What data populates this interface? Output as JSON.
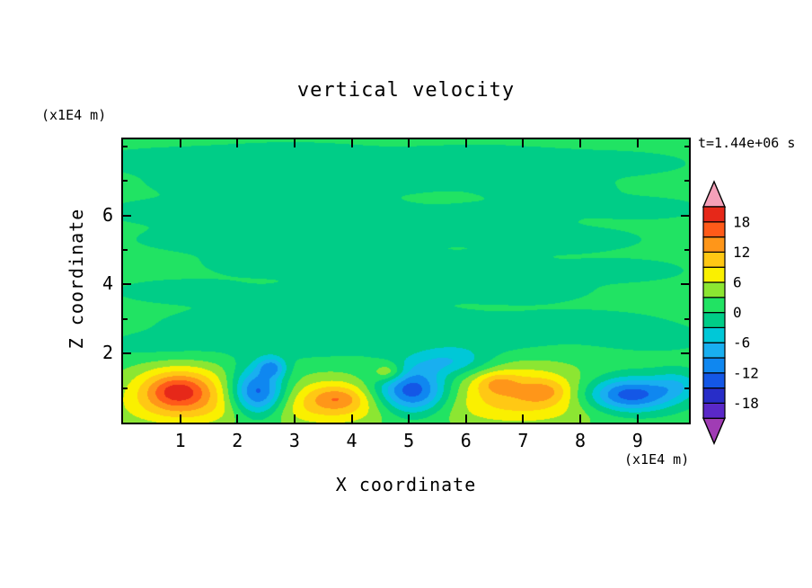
{
  "title": "vertical velocity",
  "timestamp": "t=1.44e+06 s",
  "axes": {
    "x_label": "X coordinate",
    "z_label": "Z coordinate",
    "x_unit": "(x1E4 m)",
    "z_unit": "(x1E4 m)"
  },
  "chart_data": {
    "type": "heatmap",
    "title": "vertical velocity",
    "xlabel": "X coordinate",
    "ylabel": "Z coordinate",
    "x_unit": "x1E4 m",
    "z_unit": "x1E4 m",
    "time_label": "t=1.44e+06 s",
    "x_range": [
      0,
      9.9
    ],
    "z_range": [
      0,
      8.2
    ],
    "x_ticks": [
      1,
      2,
      3,
      4,
      5,
      6,
      7,
      8,
      9
    ],
    "z_ticks": [
      2,
      4,
      6
    ],
    "z_minor_ticks": [
      1,
      3,
      5,
      7,
      8
    ],
    "levels": [
      -21,
      -18,
      -15,
      -12,
      -9,
      -6,
      -3,
      0,
      3,
      6,
      9,
      12,
      15,
      18,
      21
    ],
    "colors": [
      "#A03CB4",
      "#5A28C8",
      "#282DC8",
      "#1457E6",
      "#0F87F0",
      "#19AFF0",
      "#00C8D7",
      "#00CD87",
      "#21E363",
      "#8CE632",
      "#FAF000",
      "#FFC814",
      "#FF9619",
      "#FF5A19",
      "#E62819",
      "#F5A0B9"
    ],
    "colorbar_labels": [
      {
        "level": 18,
        "text": "18"
      },
      {
        "level": 12,
        "text": "12"
      },
      {
        "level": 6,
        "text": "6"
      },
      {
        "level": 0,
        "text": "0"
      },
      {
        "level": -6,
        "text": "-6"
      },
      {
        "level": -12,
        "text": "-12"
      },
      {
        "level": -18,
        "text": "-18"
      }
    ],
    "base": 1.3,
    "features": [
      {
        "x": 1.0,
        "z": 0.95,
        "sx": 0.62,
        "sz": 0.5,
        "a": 13
      },
      {
        "x": 0.95,
        "z": 0.9,
        "sx": 0.3,
        "sz": 0.27,
        "a": 5
      },
      {
        "x": 2.35,
        "z": 0.85,
        "sx": 0.33,
        "sz": 0.5,
        "a": -16.5
      },
      {
        "x": 2.6,
        "z": 1.6,
        "sx": 0.17,
        "sz": 0.2,
        "a": -9
      },
      {
        "x": 3.7,
        "z": 0.75,
        "sx": 0.6,
        "sz": 0.42,
        "a": 8
      },
      {
        "x": 3.75,
        "z": 0.7,
        "sx": 0.28,
        "sz": 0.2,
        "a": 3.5
      },
      {
        "x": 4.65,
        "z": 1.45,
        "sx": 0.2,
        "sz": 0.2,
        "a": 7.5
      },
      {
        "x": 5.05,
        "z": 0.9,
        "sx": 0.45,
        "sz": 0.48,
        "a": -17
      },
      {
        "x": 5.75,
        "z": 1.75,
        "sx": 0.5,
        "sz": 0.28,
        "a": -7
      },
      {
        "x": 6.9,
        "z": 1.0,
        "sx": 0.85,
        "sz": 0.52,
        "a": 8
      },
      {
        "x": 6.55,
        "z": 1.15,
        "sx": 0.25,
        "sz": 0.22,
        "a": 4.5
      },
      {
        "x": 7.4,
        "z": 0.9,
        "sx": 0.3,
        "sz": 0.25,
        "a": 4.5
      },
      {
        "x": 8.85,
        "z": 0.8,
        "sx": 0.55,
        "sz": 0.35,
        "a": -16
      },
      {
        "x": 9.7,
        "z": 1.1,
        "sx": 0.3,
        "sz": 0.3,
        "a": -5
      },
      {
        "x": 1.0,
        "z": 0.3,
        "sx": 1.0,
        "sz": 0.4,
        "a": 4
      },
      {
        "x": 3.6,
        "z": 0.3,
        "sx": 1.1,
        "sz": 0.4,
        "a": 4
      },
      {
        "x": 7.0,
        "z": 0.35,
        "sx": 1.2,
        "sz": 0.45,
        "a": 4
      },
      {
        "x": 0.8,
        "z": 7.6,
        "sx": 1.2,
        "sz": 0.3,
        "a": -2.5
      },
      {
        "x": 3.0,
        "z": 7.8,
        "sx": 1.0,
        "sz": 0.26,
        "a": -2.4
      },
      {
        "x": 6.2,
        "z": 7.7,
        "sx": 1.4,
        "sz": 0.3,
        "a": -2.5
      },
      {
        "x": 8.8,
        "z": 7.5,
        "sx": 0.9,
        "sz": 0.26,
        "a": -2.4
      },
      {
        "x": 1.8,
        "z": 6.9,
        "sx": 1.1,
        "sz": 0.28,
        "a": -2.5
      },
      {
        "x": 4.6,
        "z": 7.0,
        "sx": 0.9,
        "sz": 0.26,
        "a": -2.4
      },
      {
        "x": 7.4,
        "z": 6.8,
        "sx": 1.0,
        "sz": 0.28,
        "a": -2.4
      },
      {
        "x": 0.6,
        "z": 6.1,
        "sx": 0.8,
        "sz": 0.26,
        "a": -2.4
      },
      {
        "x": 3.4,
        "z": 6.2,
        "sx": 1.3,
        "sz": 0.3,
        "a": -2.5
      },
      {
        "x": 6.6,
        "z": 6.0,
        "sx": 0.9,
        "sz": 0.26,
        "a": -2.4
      },
      {
        "x": 9.2,
        "z": 6.2,
        "sx": 0.8,
        "sz": 0.26,
        "a": -2.4
      },
      {
        "x": 1.4,
        "z": 5.3,
        "sx": 1.0,
        "sz": 0.28,
        "a": -2.5
      },
      {
        "x": 4.2,
        "z": 5.4,
        "sx": 1.2,
        "sz": 0.3,
        "a": -2.4
      },
      {
        "x": 7.8,
        "z": 5.3,
        "sx": 1.1,
        "sz": 0.28,
        "a": -2.5
      },
      {
        "x": 2.6,
        "z": 4.6,
        "sx": 1.0,
        "sz": 0.28,
        "a": -2.4
      },
      {
        "x": 5.8,
        "z": 4.5,
        "sx": 1.3,
        "sz": 0.3,
        "a": -2.5
      },
      {
        "x": 8.9,
        "z": 4.4,
        "sx": 0.8,
        "sz": 0.26,
        "a": -2.4
      },
      {
        "x": 0.9,
        "z": 3.8,
        "sx": 0.9,
        "sz": 0.28,
        "a": -2.4
      },
      {
        "x": 3.9,
        "z": 3.7,
        "sx": 1.1,
        "sz": 0.3,
        "a": -2.5
      },
      {
        "x": 7.0,
        "z": 3.8,
        "sx": 1.0,
        "sz": 0.28,
        "a": -2.4
      },
      {
        "x": 2.0,
        "z": 2.9,
        "sx": 1.1,
        "sz": 0.3,
        "a": -2.5
      },
      {
        "x": 5.1,
        "z": 2.9,
        "sx": 1.2,
        "sz": 0.3,
        "a": -2.4
      },
      {
        "x": 8.2,
        "z": 2.9,
        "sx": 1.0,
        "sz": 0.28,
        "a": -2.5
      },
      {
        "x": 0.7,
        "z": 2.2,
        "sx": 0.9,
        "sz": 0.3,
        "a": -2.5
      },
      {
        "x": 3.2,
        "z": 2.2,
        "sx": 1.0,
        "sz": 0.3,
        "a": -2.4
      },
      {
        "x": 6.3,
        "z": 2.3,
        "sx": 1.1,
        "sz": 0.3,
        "a": -2.5
      },
      {
        "x": 9.3,
        "z": 2.4,
        "sx": 0.8,
        "sz": 0.28,
        "a": -2.4
      }
    ]
  }
}
